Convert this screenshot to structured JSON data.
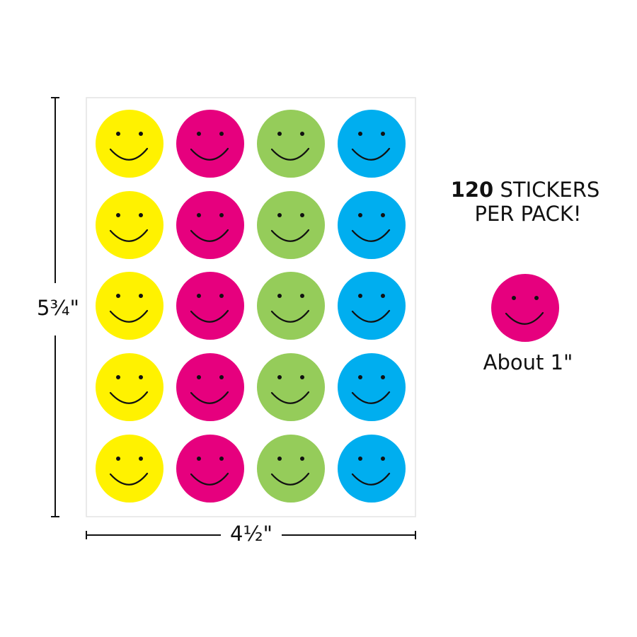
{
  "dimensions": {
    "height": "5¾\"",
    "width": "4½\""
  },
  "promo": {
    "count": "120",
    "unit": "STICKERS",
    "line2": "PER PACK!"
  },
  "sample": {
    "caption": "About 1\""
  }
}
